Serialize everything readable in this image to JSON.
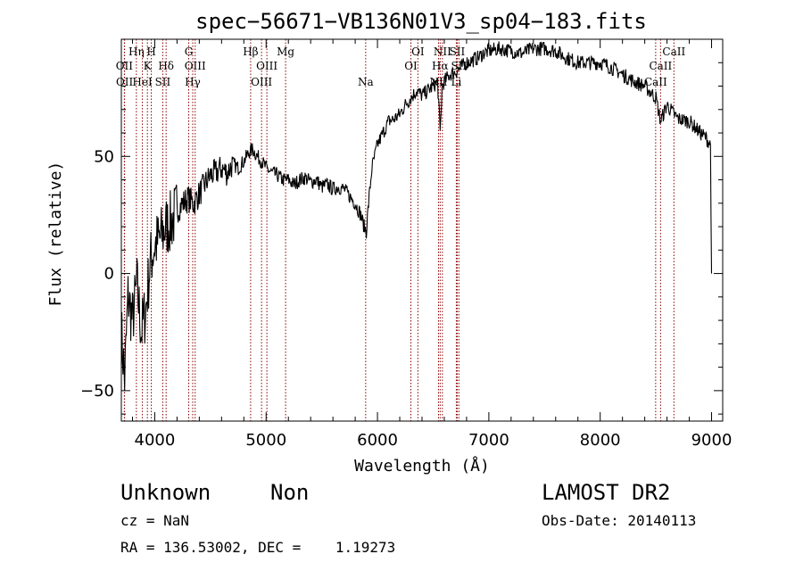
{
  "chart_data": {
    "type": "line",
    "title": "spec−56671−VB136N01V3_sp04−183.fits",
    "xlabel": "Wavelength (Å)",
    "ylabel": "Flux (relative)",
    "xlim": [
      3700,
      9100
    ],
    "ylim": [
      -63,
      100
    ],
    "xticks": [
      4000,
      5000,
      6000,
      7000,
      8000,
      9000
    ],
    "yticks": [
      -50,
      0,
      50
    ],
    "grid": false,
    "series": [
      {
        "x": [
          3700,
          3730,
          3760,
          3800,
          3840,
          3880,
          3920,
          3960,
          4000,
          4050,
          4100,
          4150,
          4200,
          4250,
          4300,
          4350,
          4400,
          4450,
          4500,
          4550,
          4600,
          4650,
          4700,
          4750,
          4800,
          4850,
          4880,
          4920,
          4960,
          5000,
          5050,
          5100,
          5150,
          5200,
          5250,
          5300,
          5350,
          5400,
          5450,
          5500,
          5550,
          5600,
          5650,
          5700,
          5750,
          5800,
          5850,
          5880,
          5900,
          5920,
          5950,
          6000,
          6050,
          6100,
          6150,
          6200,
          6250,
          6300,
          6350,
          6400,
          6450,
          6500,
          6540,
          6563,
          6580,
          6600,
          6650,
          6700,
          6750,
          6800,
          6850,
          6900,
          6950,
          7000,
          7100,
          7200,
          7300,
          7400,
          7500,
          7600,
          7700,
          7800,
          7900,
          8000,
          8100,
          8200,
          8300,
          8400,
          8500,
          8542,
          8600,
          8662,
          8700,
          8800,
          8900,
          8950,
          8990,
          9000
        ],
        "y": [
          -25,
          -45,
          -10,
          -20,
          -5,
          -25,
          -15,
          5,
          12,
          15,
          20,
          22,
          27,
          30,
          32,
          30,
          34,
          38,
          42,
          43,
          45,
          43,
          47,
          45,
          48,
          52,
          53,
          50,
          48,
          45,
          43,
          42,
          40,
          40,
          38,
          40,
          41,
          39,
          40,
          37,
          38,
          36,
          37,
          36,
          33,
          30,
          25,
          20,
          18,
          30,
          45,
          55,
          60,
          65,
          66,
          68,
          72,
          75,
          78,
          76,
          78,
          80,
          82,
          60,
          80,
          82,
          85,
          86,
          88,
          90,
          91,
          92,
          94,
          95,
          96,
          95,
          94,
          96,
          96,
          95,
          92,
          90,
          90,
          90,
          88,
          85,
          82,
          80,
          75,
          65,
          72,
          68,
          66,
          65,
          60,
          58,
          55,
          0
        ]
      }
    ],
    "annotations": [
      {
        "label": "OII",
        "x": 3727,
        "row": 2
      },
      {
        "label": "OII",
        "x": 3729,
        "row": 3
      },
      {
        "label": "Hη",
        "x": 3835,
        "row": 1
      },
      {
        "label": "H",
        "x": 3969,
        "row": 1
      },
      {
        "label": "K",
        "x": 3934,
        "row": 2
      },
      {
        "label": "HeI",
        "x": 3889,
        "row": 3
      },
      {
        "label": "SII",
        "x": 4072,
        "row": 3
      },
      {
        "label": "Hδ",
        "x": 4102,
        "row": 2
      },
      {
        "label": "G",
        "x": 4305,
        "row": 1
      },
      {
        "label": "OIII",
        "x": 4363,
        "row": 2
      },
      {
        "label": "Hγ",
        "x": 4341,
        "row": 3
      },
      {
        "label": "Hβ",
        "x": 4861,
        "row": 1
      },
      {
        "label": "OIII",
        "x": 5007,
        "row": 2
      },
      {
        "label": "OIII",
        "x": 4959,
        "row": 3
      },
      {
        "label": "Mg",
        "x": 5175,
        "row": 1
      },
      {
        "label": "Na",
        "x": 5894,
        "row": 3
      },
      {
        "label": "OI",
        "x": 6363,
        "row": 1
      },
      {
        "label": "OI",
        "x": 6300,
        "row": 2
      },
      {
        "label": "NII",
        "x": 6583,
        "row": 1
      },
      {
        "label": "SII",
        "x": 6716,
        "row": 1
      },
      {
        "label": "Hα",
        "x": 6563,
        "row": 2
      },
      {
        "label": "SII",
        "x": 6731,
        "row": 2
      },
      {
        "label": "NII",
        "x": 6548,
        "row": 3
      },
      {
        "label": "Li",
        "x": 6708,
        "row": 3
      },
      {
        "label": "CaII",
        "x": 8662,
        "row": 1
      },
      {
        "label": "CaII",
        "x": 8542,
        "row": 2
      },
      {
        "label": "CaII",
        "x": 8498,
        "row": 3
      }
    ],
    "line_markers": [
      3727,
      3729,
      3835,
      3889,
      3934,
      3969,
      4072,
      4102,
      4305,
      4341,
      4363,
      4861,
      4959,
      5007,
      5175,
      5894,
      6300,
      6363,
      6548,
      6563,
      6583,
      6708,
      6716,
      6731,
      8498,
      8542,
      8662
    ]
  },
  "info": {
    "class_label": "Unknown",
    "subclass_label": "Non",
    "survey_label": "LAMOST DR2",
    "cz_text": "cz = NaN",
    "obs_date_text": "Obs-Date: 20140113",
    "radec_text": "RA = 136.53002, DEC =    1.19273"
  },
  "colors": {
    "spectrum": "#000000",
    "line_markers": "#8b0000",
    "background": "#ffffff"
  }
}
